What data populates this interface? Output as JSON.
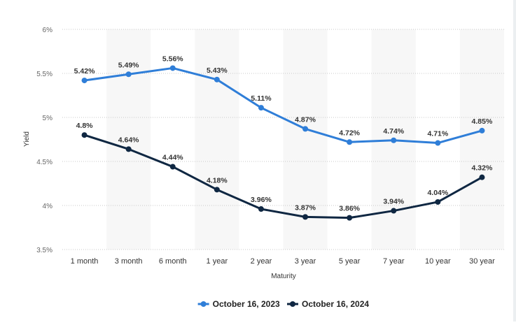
{
  "chart_data": {
    "type": "line",
    "categories": [
      "1 month",
      "3 month",
      "6 month",
      "1 year",
      "2 year",
      "3 year",
      "5 year",
      "7 year",
      "10 year",
      "30 year"
    ],
    "series": [
      {
        "name": "October 16, 2023",
        "values": [
          5.42,
          5.49,
          5.56,
          5.43,
          5.11,
          4.87,
          4.72,
          4.74,
          4.71,
          4.85
        ],
        "labels": [
          "5.42%",
          "5.49%",
          "5.56%",
          "5.43%",
          "5.11%",
          "4.87%",
          "4.72%",
          "4.74%",
          "4.71%",
          "4.85%"
        ],
        "color": "#2f7ed8"
      },
      {
        "name": "October 16, 2024",
        "values": [
          4.8,
          4.64,
          4.44,
          4.18,
          3.96,
          3.87,
          3.86,
          3.94,
          4.04,
          4.32
        ],
        "labels": [
          "4.8%",
          "4.64%",
          "4.44%",
          "4.18%",
          "3.96%",
          "3.87%",
          "3.86%",
          "3.94%",
          "4.04%",
          "4.32%"
        ],
        "color": "#0f2742"
      }
    ],
    "xlabel": "Maturity",
    "ylabel": "Yield",
    "ylim": [
      3.5,
      6
    ],
    "yticks": [
      3.5,
      4,
      4.5,
      5,
      5.5,
      6
    ],
    "ytick_labels": [
      "3.5%",
      "4%",
      "4.5%",
      "5%",
      "5.5%",
      "6%"
    ],
    "grid": true,
    "alternating_bands": true,
    "band_color": "#f7f7f7",
    "grid_color": "#c8c8c8",
    "legend_position": "bottom-center"
  }
}
